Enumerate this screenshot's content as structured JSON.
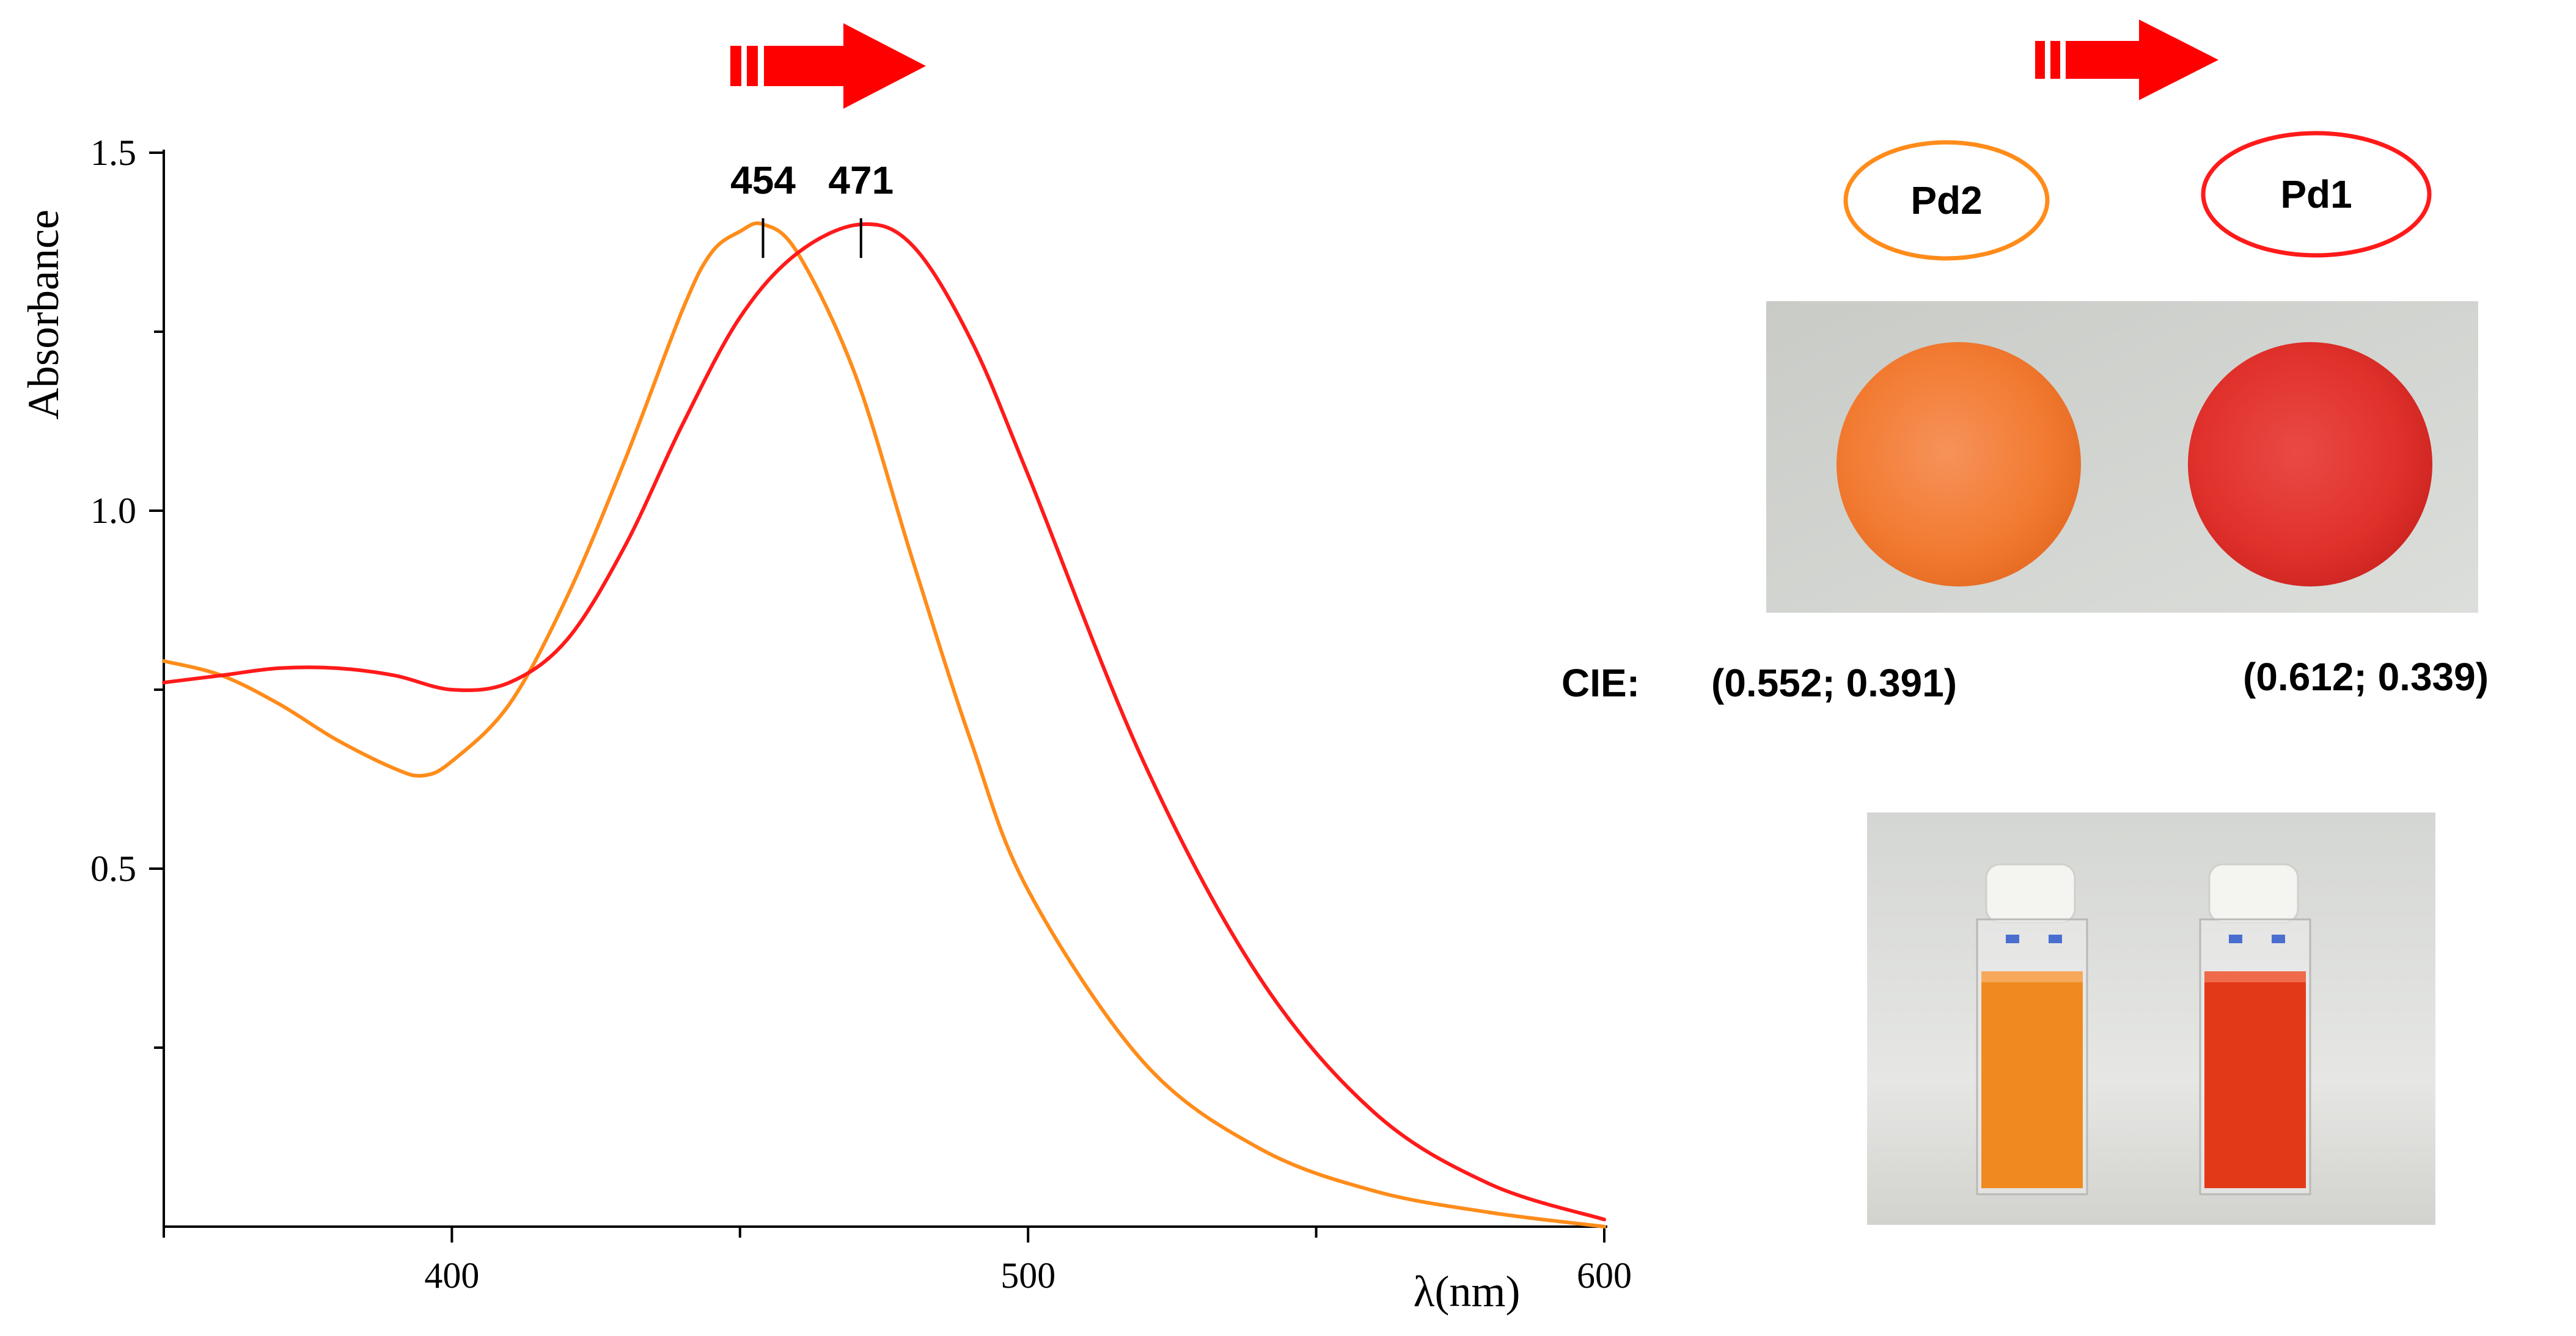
{
  "chart_data": {
    "type": "line",
    "xlabel": "λ(nm)",
    "ylabel": "Absorbance",
    "xlim": [
      350,
      600
    ],
    "ylim": [
      0,
      1.5
    ],
    "x_ticks": [
      400,
      500,
      600
    ],
    "y_ticks": [
      0.5,
      1.0,
      1.5
    ],
    "x_tick_labels": [
      "400",
      "500",
      "600"
    ],
    "y_tick_labels": [
      "0.5",
      "1.0",
      "1.5"
    ],
    "grid": false,
    "series": [
      {
        "color": "#ff8c1a",
        "x": [
          350,
          360,
          370,
          380,
          390,
          395,
          400,
          410,
          420,
          430,
          440,
          445,
          450,
          454,
          460,
          470,
          480,
          490,
          500,
          520,
          540,
          560,
          580,
          600
        ],
        "y": [
          0.79,
          0.77,
          0.73,
          0.68,
          0.64,
          0.63,
          0.65,
          0.73,
          0.88,
          1.07,
          1.28,
          1.36,
          1.39,
          1.4,
          1.36,
          1.19,
          0.93,
          0.68,
          0.47,
          0.23,
          0.11,
          0.05,
          0.02,
          0.0
        ]
      },
      {
        "color": "#ff1a1a",
        "x": [
          350,
          360,
          370,
          380,
          390,
          400,
          410,
          420,
          430,
          440,
          450,
          460,
          471,
          480,
          490,
          500,
          520,
          540,
          560,
          580,
          600
        ],
        "y": [
          0.76,
          0.77,
          0.78,
          0.78,
          0.77,
          0.75,
          0.76,
          0.82,
          0.95,
          1.12,
          1.27,
          1.36,
          1.4,
          1.37,
          1.24,
          1.05,
          0.65,
          0.35,
          0.16,
          0.06,
          0.01
        ]
      }
    ],
    "annotations": [
      {
        "text": "454",
        "x": 454,
        "y": 1.4
      },
      {
        "text": "471",
        "x": 471,
        "y": 1.4
      }
    ]
  },
  "legend": {
    "pd2_label": "Pd2",
    "pd1_label": "Pd1",
    "pd2_color": "#ff8c1a",
    "pd1_color": "#ff1a1a"
  },
  "cie": {
    "label": "CIE:",
    "pd2_value": "(0.552; 0.391)",
    "pd1_value": "(0.612; 0.339)"
  },
  "arrows": {
    "color": "#ff0000"
  },
  "photos": {
    "discs": {
      "pd2_color": "#f27a30",
      "pd1_color": "#e0302b"
    },
    "cuvettes": {
      "pd2_color": "#f08a20",
      "pd1_color": "#e23a18"
    }
  }
}
